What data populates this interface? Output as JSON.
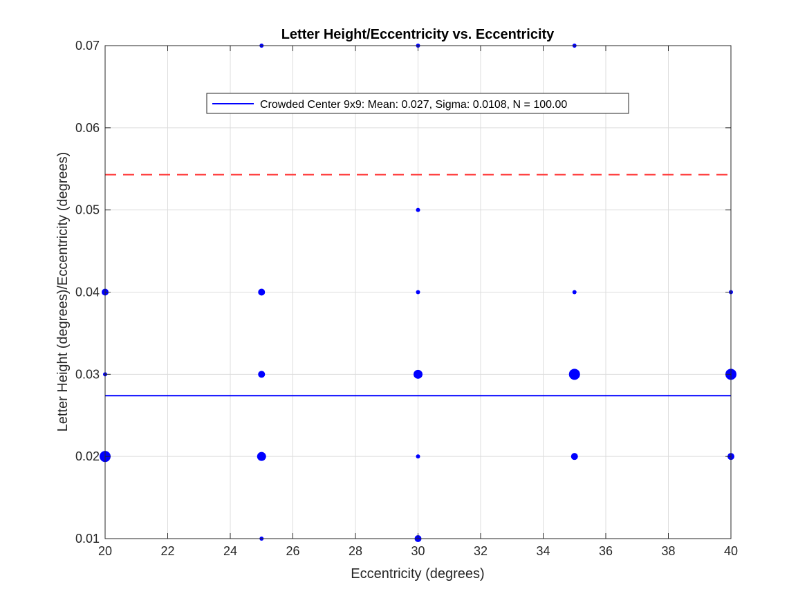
{
  "chart_data": {
    "type": "scatter",
    "title": "Letter Height/Eccentricity vs. Eccentricity",
    "xlabel": "Eccentricity (degrees)",
    "ylabel": "Letter Height (degrees)/Eccentricity (degrees)",
    "xlim": [
      20,
      40
    ],
    "ylim": [
      0.01,
      0.07
    ],
    "xticks": [
      20,
      22,
      24,
      26,
      28,
      30,
      32,
      34,
      36,
      38,
      40
    ],
    "xtick_labels": [
      "20",
      "22",
      "24",
      "26",
      "28",
      "30",
      "32",
      "34",
      "36",
      "38",
      "40"
    ],
    "yticks": [
      0.01,
      0.02,
      0.03,
      0.04,
      0.05,
      0.06,
      0.07
    ],
    "ytick_labels": [
      "0.01",
      "0.02",
      "0.03",
      "0.04",
      "0.05",
      "0.06",
      "0.07"
    ],
    "grid": true,
    "legend_position": "top",
    "marker_color": "#0000ff",
    "points": [
      {
        "x": 20,
        "y": 0.04,
        "size": 2
      },
      {
        "x": 20,
        "y": 0.03,
        "size": 1
      },
      {
        "x": 20,
        "y": 0.02,
        "size": 4
      },
      {
        "x": 25,
        "y": 0.07,
        "size": 1
      },
      {
        "x": 25,
        "y": 0.04,
        "size": 2
      },
      {
        "x": 25,
        "y": 0.03,
        "size": 2
      },
      {
        "x": 25,
        "y": 0.02,
        "size": 3
      },
      {
        "x": 25,
        "y": 0.01,
        "size": 1
      },
      {
        "x": 30,
        "y": 0.07,
        "size": 1
      },
      {
        "x": 30,
        "y": 0.05,
        "size": 1
      },
      {
        "x": 30,
        "y": 0.04,
        "size": 1
      },
      {
        "x": 30,
        "y": 0.03,
        "size": 3
      },
      {
        "x": 30,
        "y": 0.02,
        "size": 1
      },
      {
        "x": 30,
        "y": 0.01,
        "size": 2
      },
      {
        "x": 35,
        "y": 0.07,
        "size": 1
      },
      {
        "x": 35,
        "y": 0.04,
        "size": 1
      },
      {
        "x": 35,
        "y": 0.03,
        "size": 4
      },
      {
        "x": 35,
        "y": 0.02,
        "size": 2
      },
      {
        "x": 40,
        "y": 0.04,
        "size": 1
      },
      {
        "x": 40,
        "y": 0.03,
        "size": 4
      },
      {
        "x": 40,
        "y": 0.02,
        "size": 2
      }
    ],
    "mean_line": {
      "label": "Crowded Center 9x9: Mean: 0.027, Sigma: 0.0108, N = 100.00",
      "y": 0.0274,
      "color": "#0000ff"
    },
    "threshold_line": {
      "y": 0.0543,
      "color": "#ff3333",
      "style": "dashed"
    }
  }
}
